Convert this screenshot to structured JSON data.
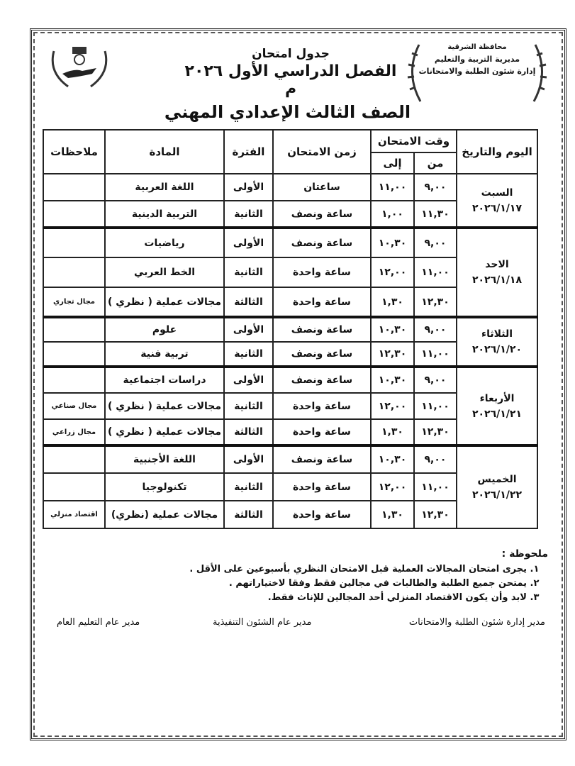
{
  "header": {
    "org_lines": [
      "محافظة الشرقية",
      "مديرية التربية والتعليم",
      "إدارة شئون الطلبة والامتحانات"
    ],
    "title_line1": "جدول امتحان",
    "title_line2": "الفصل الدراسي الأول ٢٠٢٦ م",
    "grade": "الصف الثالث الإعدادي المهني"
  },
  "table": {
    "headers": {
      "day_date": "اليوم والتاريخ",
      "exam_time": "وقت الامتحان",
      "from": "من",
      "to": "إلى",
      "duration": "زمن الامتحان",
      "period": "الفترة",
      "subject": "المادة",
      "notes": "ملاحظات"
    },
    "days": [
      {
        "day": "السبت",
        "date": "٢٠٢٦/١/١٧",
        "exams": [
          {
            "from": "٩,٠٠",
            "to": "١١,٠٠",
            "duration": "ساعتان",
            "period": "الأولى",
            "subject": "اللغة العربية",
            "note": ""
          },
          {
            "from": "١١,٣٠",
            "to": "١,٠٠",
            "duration": "ساعة ونصف",
            "period": "الثانية",
            "subject": "التربية الدينية",
            "note": ""
          }
        ]
      },
      {
        "day": "الاحد",
        "date": "٢٠٢٦/١/١٨",
        "exams": [
          {
            "from": "٩,٠٠",
            "to": "١٠,٣٠",
            "duration": "ساعة ونصف",
            "period": "الأولى",
            "subject": "رياضيات",
            "note": ""
          },
          {
            "from": "١١,٠٠",
            "to": "١٢,٠٠",
            "duration": "ساعة واحدة",
            "period": "الثانية",
            "subject": "الخط العربي",
            "note": ""
          },
          {
            "from": "١٢,٣٠",
            "to": "١,٣٠",
            "duration": "ساعة واحدة",
            "period": "الثالثة",
            "subject": "مجالات عملية ( نظري )",
            "note": "مجال تجاري"
          }
        ]
      },
      {
        "day": "الثلاثاء",
        "date": "٢٠٢٦/١/٢٠",
        "exams": [
          {
            "from": "٩,٠٠",
            "to": "١٠,٣٠",
            "duration": "ساعة ونصف",
            "period": "الأولى",
            "subject": "علوم",
            "note": ""
          },
          {
            "from": "١١,٠٠",
            "to": "١٢,٣٠",
            "duration": "ساعة ونصف",
            "period": "الثانية",
            "subject": "تربية فنية",
            "note": ""
          }
        ]
      },
      {
        "day": "الأربعاء",
        "date": "٢٠٢٦/١/٢١",
        "exams": [
          {
            "from": "٩,٠٠",
            "to": "١٠,٣٠",
            "duration": "ساعة ونصف",
            "period": "الأولى",
            "subject": "دراسات اجتماعية",
            "note": ""
          },
          {
            "from": "١١,٠٠",
            "to": "١٢,٠٠",
            "duration": "ساعة واحدة",
            "period": "الثانية",
            "subject": "مجالات عملية ( نظري )",
            "note": "مجال صناعي"
          },
          {
            "from": "١٢,٣٠",
            "to": "١,٣٠",
            "duration": "ساعة واحدة",
            "period": "الثالثة",
            "subject": "مجالات عملية ( نظري )",
            "note": "مجال زراعي"
          }
        ]
      },
      {
        "day": "الخميس",
        "date": "٢٠٢٦/١/٢٢",
        "exams": [
          {
            "from": "٩,٠٠",
            "to": "١٠,٣٠",
            "duration": "ساعة ونصف",
            "period": "الأولى",
            "subject": "اللغة الأجنبية",
            "note": ""
          },
          {
            "from": "١١,٠٠",
            "to": "١٢,٠٠",
            "duration": "ساعة واحدة",
            "period": "الثانية",
            "subject": "تكنولوجيا",
            "note": ""
          },
          {
            "from": "١٢,٣٠",
            "to": "١,٣٠",
            "duration": "ساعة واحدة",
            "period": "الثالثة",
            "subject": "مجالات عملية (نظري)",
            "note": "اقتصاد منزلي"
          }
        ]
      }
    ]
  },
  "notes": {
    "heading": "ملحوظة :",
    "items": [
      "يجرى امتحان المجالات العملية قبل الامتحان النظري بأسبوعين على الأقل .",
      "يمتحن جميع الطلبة والطالبات في مجالين فقط وفقا لاختياراتهم .",
      "لابد وأن يكون الاقتصاد المنزلي أحد المجالين للإناث فقط."
    ]
  },
  "signatures": {
    "right": "مدير إدارة شئون الطلبة والامتحانات",
    "middle": "مدير عام الشئون التنفيذية",
    "left": "مدير عام التعليم العام"
  }
}
